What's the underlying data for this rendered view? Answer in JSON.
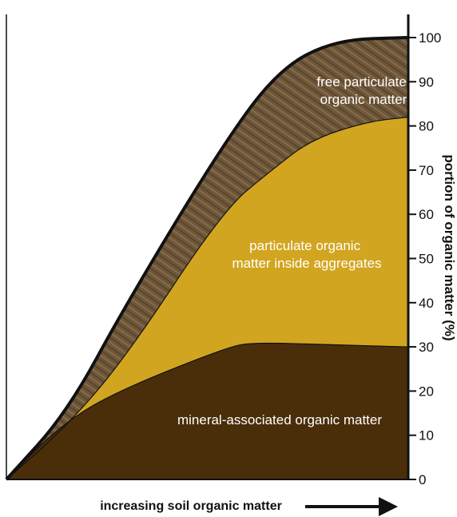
{
  "colors": {
    "free": "#6e5639",
    "inside": "#d2a520",
    "mineral": "#4a2e0a",
    "outline": "#111111"
  },
  "chart_data": {
    "type": "area",
    "xlabel": "increasing soil organic matter",
    "ylabel": "portion of organic matter (%)",
    "ylim": [
      0,
      100
    ],
    "yticks": [
      0,
      10,
      20,
      30,
      40,
      50,
      60,
      70,
      80,
      90,
      100
    ],
    "grid": false,
    "legend": "none",
    "series": [
      {
        "name": "mineral-associated organic matter",
        "color_key": "mineral",
        "boundary": [
          [
            0,
            0
          ],
          [
            0.12,
            11
          ],
          [
            0.25,
            19
          ],
          [
            0.55,
            30
          ],
          [
            0.62,
            31
          ],
          [
            0.8,
            30.5
          ],
          [
            1,
            30
          ]
        ]
      },
      {
        "name": "particulate organic matter inside aggregates",
        "color_key": "inside",
        "boundary": [
          [
            0,
            0
          ],
          [
            0.15,
            12
          ],
          [
            0.3,
            28
          ],
          [
            0.54,
            61
          ],
          [
            0.66,
            70
          ],
          [
            0.76,
            77
          ],
          [
            0.9,
            81
          ],
          [
            1,
            82
          ]
        ]
      },
      {
        "name": "free particulate organic matter",
        "color_key": "free",
        "boundary": [
          [
            0,
            0
          ],
          [
            0.15,
            15
          ],
          [
            0.3,
            40
          ],
          [
            0.54,
            76
          ],
          [
            0.68,
            93
          ],
          [
            0.82,
            99.5
          ],
          [
            1,
            100
          ]
        ]
      }
    ],
    "labels": {
      "free": [
        "free particulate",
        "organic matter"
      ],
      "inside": [
        "particulate organic",
        "matter inside aggregates"
      ],
      "mineral": [
        "mineral-associated organic matter"
      ]
    }
  }
}
